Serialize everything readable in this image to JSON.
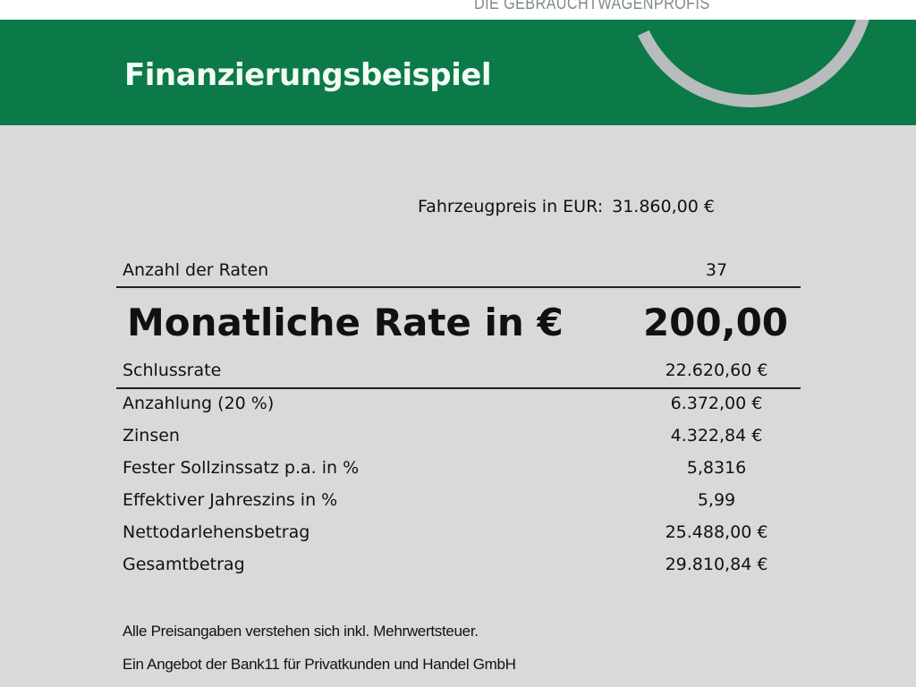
{
  "header": {
    "brand": "DIE GEBRAUCHTWAGENPROFIS",
    "title": "Finanzierungsbeispiel",
    "brand_color": "#0b7a48"
  },
  "price": {
    "label": "Fahrzeugpreis in EUR:",
    "value": "31.860,00 €"
  },
  "rates": {
    "label": "Anzahl der Raten",
    "value": "37"
  },
  "monthly": {
    "label": "Monatliche Rate in €",
    "value": "200,00"
  },
  "final": {
    "label": "Schlussrate",
    "value": "22.620,60 €"
  },
  "details": [
    {
      "label": "Anzahlung (20 %)",
      "value": "6.372,00 €"
    },
    {
      "label": "Zinsen",
      "value": "4.322,84 €"
    },
    {
      "label": "Fester Sollzinssatz p.a. in %",
      "value": "5,8316"
    },
    {
      "label": "Effektiver Jahreszins in %",
      "value": "5,99"
    },
    {
      "label": "Nettodarlehensbetrag",
      "value": "25.488,00 €"
    },
    {
      "label": "Gesamtbetrag",
      "value": "29.810,84 €"
    }
  ],
  "notes": [
    "Alle Preisangaben verstehen sich inkl. Mehrwertsteuer.",
    "Ein Angebot der Bank11 für Privatkunden und Handel GmbH"
  ]
}
